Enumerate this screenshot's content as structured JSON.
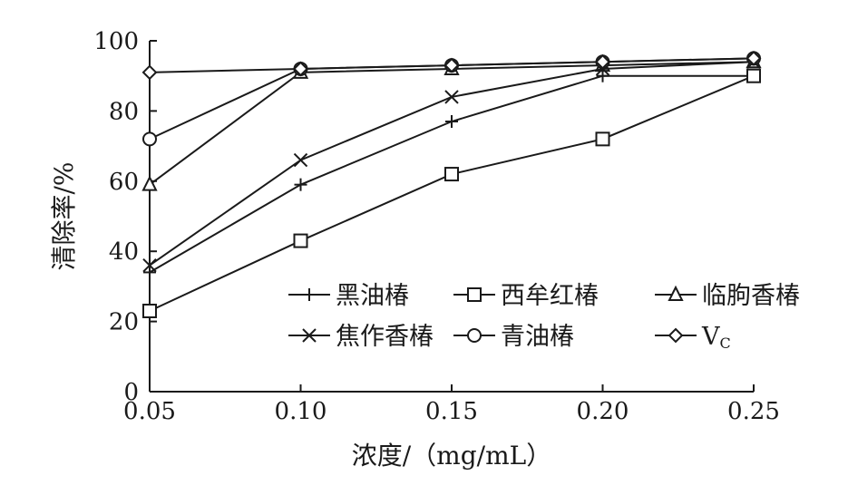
{
  "chart_data": {
    "type": "line",
    "xlabel": "浓度/（mg/mL）",
    "ylabel": "清除率/%",
    "x": [
      0.05,
      0.1,
      0.15,
      0.2,
      0.25
    ],
    "x_tick_labels": [
      "0.05",
      "0.10",
      "0.15",
      "0.20",
      "0.25"
    ],
    "y_ticks": [
      0,
      20,
      40,
      60,
      80,
      100
    ],
    "y_tick_labels": [
      "0",
      "20",
      "40",
      "60",
      "80",
      "100"
    ],
    "xlim": [
      0.05,
      0.25
    ],
    "ylim": [
      0,
      100
    ],
    "grid": false,
    "legend_placement": "bottom-right",
    "series": [
      {
        "name": "黑油椿",
        "marker": "plus",
        "values": [
          34,
          59,
          77,
          90,
          90
        ]
      },
      {
        "name": "西牟红椿",
        "marker": "square",
        "values": [
          23,
          43,
          62,
          72,
          90
        ]
      },
      {
        "name": "临朐香椿",
        "marker": "triangle",
        "values": [
          59,
          91,
          92,
          93,
          94
        ]
      },
      {
        "name": "焦作香椿",
        "marker": "x",
        "values": [
          36,
          66,
          84,
          92,
          94
        ]
      },
      {
        "name": "青油椿",
        "marker": "circle",
        "values": [
          72,
          92,
          93,
          94,
          95
        ]
      },
      {
        "name": "V",
        "name_subscript": "C",
        "marker": "diamond",
        "values": [
          91,
          92,
          93,
          94,
          95
        ]
      }
    ]
  }
}
